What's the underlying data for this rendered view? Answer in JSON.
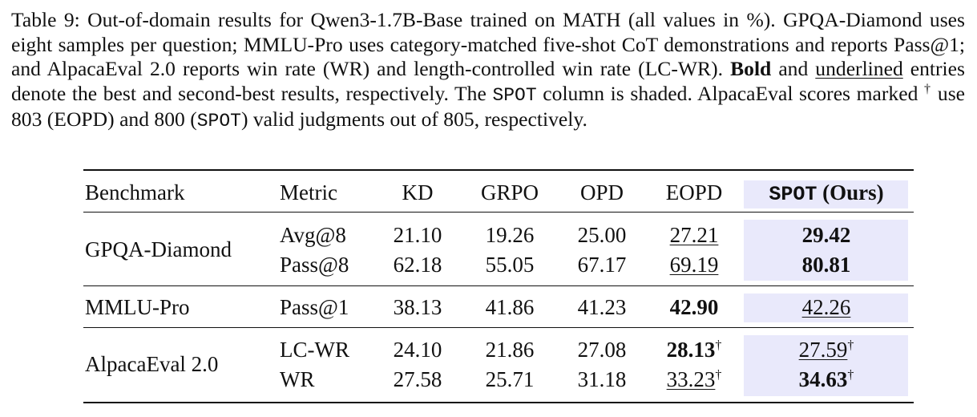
{
  "caption": {
    "prefix": "Table 9:  Out-of-domain results for Qwen3-1.7B-Base trained on MATH (all values in %). GPQA-Diamond uses eight samples per question; MMLU-Pro uses category-matched five-shot CoT demonstrations and reports Pass@1; and AlpacaEval 2.0 reports win rate (WR) and length-controlled win rate (LC-WR). ",
    "bold_word": "Bold",
    "and_word": " and ",
    "underlined_word": "underlined",
    "middle": " entries denote the best and second-best results, respectively. The ",
    "spot_code": "SPOT",
    "column_text": " column is shaded.  AlpacaEval scores marked ",
    "dagger": "†",
    "use_text": " use 803 (EOPD) and 800 (",
    "spot_code2": "SPOT",
    "end_text": ") valid judgments out of 805, respectively."
  },
  "table": {
    "headers": {
      "benchmark": "Benchmark",
      "metric": "Metric",
      "kd": "KD",
      "grpo": "GRPO",
      "opd": "OPD",
      "eopd": "EOPD",
      "spot_code": "SPOT",
      "spot_suffix": " (Ours)"
    },
    "groups": [
      {
        "benchmark": "GPQA-Diamond",
        "rows": [
          {
            "metric": "Avg@8",
            "kd": "21.10",
            "grpo": "19.26",
            "opd": "25.00",
            "eopd": "27.21",
            "spot": "29.42",
            "eopd_style": "underline",
            "spot_style": "bold",
            "eopd_dagger": "",
            "spot_dagger": ""
          },
          {
            "metric": "Pass@8",
            "kd": "62.18",
            "grpo": "55.05",
            "opd": "67.17",
            "eopd": "69.19",
            "spot": "80.81",
            "eopd_style": "underline",
            "spot_style": "bold",
            "eopd_dagger": "",
            "spot_dagger": ""
          }
        ]
      },
      {
        "benchmark": "MMLU-Pro",
        "rows": [
          {
            "metric": "Pass@1",
            "kd": "38.13",
            "grpo": "41.86",
            "opd": "41.23",
            "eopd": "42.90",
            "spot": "42.26",
            "eopd_style": "bold",
            "spot_style": "underline",
            "eopd_dagger": "",
            "spot_dagger": ""
          }
        ]
      },
      {
        "benchmark": "AlpacaEval 2.0",
        "rows": [
          {
            "metric": "LC-WR",
            "kd": "24.10",
            "grpo": "21.86",
            "opd": "27.08",
            "eopd": "28.13",
            "spot": "27.59",
            "eopd_style": "bold",
            "spot_style": "underline",
            "eopd_dagger": "†",
            "spot_dagger": "†"
          },
          {
            "metric": "WR",
            "kd": "27.58",
            "grpo": "25.71",
            "opd": "31.18",
            "eopd": "33.23",
            "spot": "34.63",
            "eopd_style": "underline",
            "spot_style": "bold",
            "eopd_dagger": "†",
            "spot_dagger": "†"
          }
        ]
      }
    ]
  }
}
